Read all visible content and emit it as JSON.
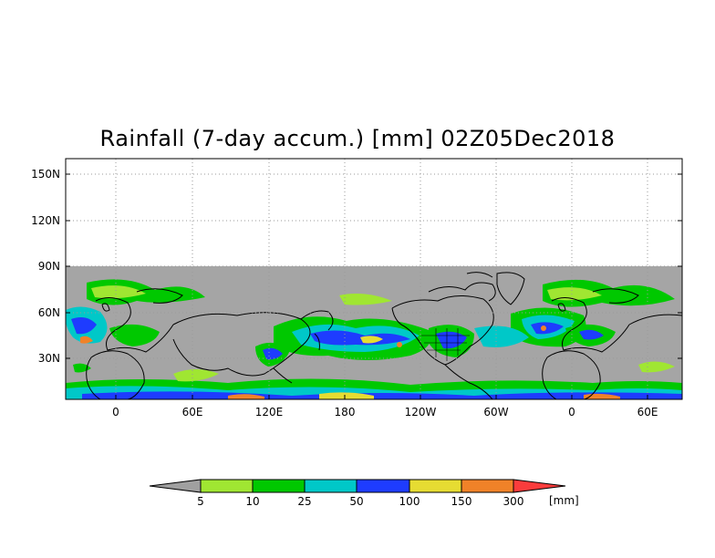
{
  "title": "Rainfall (7-day accum.) [mm] 02Z05Dec2018",
  "lat_labels": [
    "150N",
    "120N",
    "90N",
    "60N",
    "30N"
  ],
  "lon_labels": [
    "0",
    "60E",
    "120E",
    "180",
    "120W",
    "60W",
    "0",
    "60E"
  ],
  "colorbar": {
    "ticks": [
      "5",
      "10",
      "25",
      "50",
      "100",
      "150",
      "300"
    ],
    "unit": "[mm]",
    "colors": [
      "#a0a0a0",
      "#a0e632",
      "#00c800",
      "#00c8c8",
      "#1e3cff",
      "#e6dc32",
      "#f08228",
      "#fa3c3c"
    ]
  },
  "colors": {
    "missing": "#a5a5a5",
    "grid": "#9a9a9a",
    "coast": "#000000"
  }
}
